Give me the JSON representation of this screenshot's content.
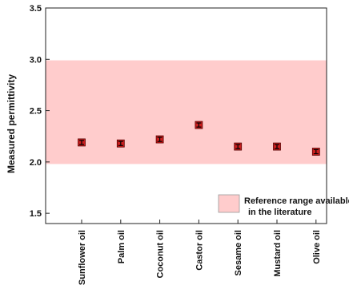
{
  "chart_data": {
    "type": "scatter",
    "title": "",
    "xlabel": "",
    "ylabel": "Measured permittivity",
    "categories": [
      "Sunflower oil",
      "Palm oil",
      "Coconut oil",
      "Castor oil",
      "Sesame oil",
      "Mustard oil",
      "Olive oil"
    ],
    "values": [
      2.19,
      2.18,
      2.22,
      2.36,
      2.15,
      2.15,
      2.1
    ],
    "error": [
      0.02,
      0.02,
      0.02,
      0.02,
      0.02,
      0.02,
      0.02
    ],
    "ylim": [
      1.4,
      3.5
    ],
    "yticks": [
      "1.5",
      "2.0",
      "2.5",
      "3.0",
      "3.5"
    ],
    "reference_band": {
      "low": 1.98,
      "high": 2.99,
      "color": "#ffcccc"
    },
    "legend": {
      "label_line1": "Reference range available",
      "label_line2": "in the literature",
      "position": "bottom-right"
    },
    "marker_color": "#cc1f1f",
    "grid": false
  }
}
